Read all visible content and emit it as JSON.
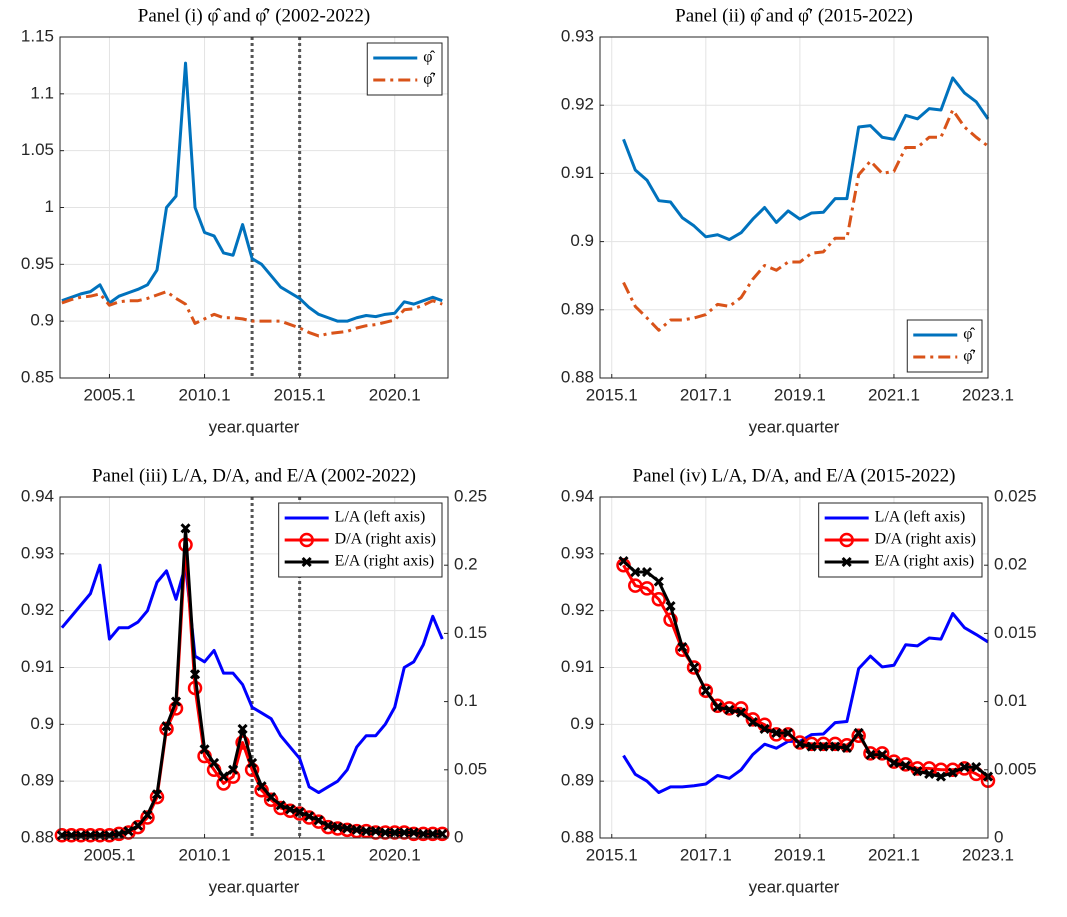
{
  "chart_data": [
    {
      "type": "line",
      "title": "Panel (i) φ̂ and φ̂′ (2002-2022)",
      "xlabel": "year.quarter",
      "x": [
        2002.5,
        2003,
        2003.5,
        2004,
        2004.5,
        2005,
        2005.5,
        2006,
        2006.5,
        2007,
        2007.5,
        2008,
        2008.5,
        2009,
        2009.5,
        2010,
        2010.5,
        2011,
        2011.5,
        2012,
        2012.5,
        2013,
        2013.5,
        2014,
        2014.5,
        2015,
        2015.5,
        2016,
        2016.5,
        2017,
        2017.5,
        2018,
        2018.5,
        2019,
        2019.5,
        2020,
        2020.5,
        2021,
        2021.5,
        2022,
        2022.5
      ],
      "series": [
        {
          "name": "φ̂",
          "color": "#0072BD",
          "style": "solid",
          "values": [
            0.918,
            0.921,
            0.924,
            0.926,
            0.932,
            0.916,
            0.922,
            0.925,
            0.928,
            0.932,
            0.945,
            1.0,
            1.01,
            1.127,
            1.0,
            0.978,
            0.975,
            0.96,
            0.958,
            0.985,
            0.955,
            0.95,
            0.94,
            0.93,
            0.925,
            0.92,
            0.912,
            0.906,
            0.903,
            0.9,
            0.9,
            0.903,
            0.905,
            0.904,
            0.906,
            0.907,
            0.917,
            0.915,
            0.918,
            0.921,
            0.918
          ]
        },
        {
          "name": "φ̂′",
          "color": "#D95319",
          "style": "dashdot",
          "values": [
            0.916,
            0.919,
            0.921,
            0.922,
            0.924,
            0.914,
            0.917,
            0.918,
            0.918,
            0.92,
            0.923,
            0.926,
            0.92,
            0.915,
            0.898,
            0.902,
            0.906,
            0.903,
            0.903,
            0.902,
            0.9,
            0.9,
            0.9,
            0.9,
            0.897,
            0.894,
            0.89,
            0.887,
            0.889,
            0.89,
            0.891,
            0.894,
            0.896,
            0.897,
            0.899,
            0.901,
            0.91,
            0.911,
            0.914,
            0.918,
            0.915
          ]
        }
      ],
      "xlim": [
        2002.4,
        2022.8
      ],
      "xticks": [
        {
          "value": 2005,
          "label": "2005.1"
        },
        {
          "value": 2010,
          "label": "2010.1"
        },
        {
          "value": 2015,
          "label": "2015.1"
        },
        {
          "value": 2020,
          "label": "2020.1"
        }
      ],
      "ylim": [
        0.85,
        1.15
      ],
      "yticks": [
        0.85,
        0.9,
        0.95,
        1,
        1.05,
        1.1,
        1.15
      ],
      "vlines": [
        2012.5,
        2015
      ],
      "vline_color": "#555555",
      "grid": true,
      "legend": "northeast"
    },
    {
      "type": "line",
      "title": "Panel (ii) φ̂ and φ̂′ (2015-2022)",
      "xlabel": "year.quarter",
      "x": [
        2015.25,
        2015.5,
        2015.75,
        2016,
        2016.25,
        2016.5,
        2016.75,
        2017,
        2017.25,
        2017.5,
        2017.75,
        2018,
        2018.25,
        2018.5,
        2018.75,
        2019,
        2019.25,
        2019.5,
        2019.75,
        2020,
        2020.25,
        2020.5,
        2020.75,
        2021,
        2021.25,
        2021.5,
        2021.75,
        2022,
        2022.25,
        2022.5,
        2022.75,
        2023
      ],
      "series": [
        {
          "name": "φ̂",
          "color": "#0072BD",
          "style": "solid",
          "values": [
            0.915,
            0.9105,
            0.909,
            0.906,
            0.9058,
            0.9035,
            0.9023,
            0.9007,
            0.901,
            0.9003,
            0.9013,
            0.9033,
            0.905,
            0.9028,
            0.9045,
            0.9033,
            0.9042,
            0.9043,
            0.9063,
            0.9063,
            0.9168,
            0.917,
            0.9153,
            0.915,
            0.9185,
            0.918,
            0.9195,
            0.9193,
            0.924,
            0.9218,
            0.9205,
            0.918
          ]
        },
        {
          "name": "φ̂′",
          "color": "#D95319",
          "style": "dashdot",
          "values": [
            0.894,
            0.8905,
            0.8888,
            0.887,
            0.8885,
            0.8885,
            0.8888,
            0.8893,
            0.8908,
            0.8905,
            0.8918,
            0.8945,
            0.8965,
            0.8958,
            0.897,
            0.897,
            0.8983,
            0.8985,
            0.9005,
            0.9005,
            0.9098,
            0.9118,
            0.91,
            0.9103,
            0.9138,
            0.9138,
            0.9153,
            0.9153,
            0.9193,
            0.9168,
            0.9153,
            0.914
          ]
        }
      ],
      "xlim": [
        2014.75,
        2023
      ],
      "xticks": [
        {
          "value": 2015,
          "label": "2015.1"
        },
        {
          "value": 2017,
          "label": "2017.1"
        },
        {
          "value": 2019,
          "label": "2019.1"
        },
        {
          "value": 2021,
          "label": "2021.1"
        },
        {
          "value": 2023,
          "label": "2023.1"
        }
      ],
      "ylim": [
        0.88,
        0.93
      ],
      "yticks": [
        0.88,
        0.89,
        0.9,
        0.91,
        0.92,
        0.93
      ],
      "grid": true,
      "legend": "southeast"
    },
    {
      "type": "line",
      "title": "Panel (iii) L/A, D/A, and E/A (2002-2022)",
      "xlabel": "year.quarter",
      "x": [
        2002.5,
        2003,
        2003.5,
        2004,
        2004.5,
        2005,
        2005.5,
        2006,
        2006.5,
        2007,
        2007.5,
        2008,
        2008.5,
        2009,
        2009.5,
        2010,
        2010.5,
        2011,
        2011.5,
        2012,
        2012.5,
        2013,
        2013.5,
        2014,
        2014.5,
        2015,
        2015.5,
        2016,
        2016.5,
        2017,
        2017.5,
        2018,
        2018.5,
        2019,
        2019.5,
        2020,
        2020.5,
        2021,
        2021.5,
        2022,
        2022.5
      ],
      "series": [
        {
          "name": "L/A (left axis)",
          "color": "#0000FF",
          "style": "solid",
          "values": [
            0.917,
            0.919,
            0.921,
            0.923,
            0.928,
            0.915,
            0.917,
            0.917,
            0.918,
            0.92,
            0.925,
            0.927,
            0.922,
            0.928,
            0.912,
            0.911,
            0.913,
            0.909,
            0.909,
            0.907,
            0.903,
            0.902,
            0.901,
            0.898,
            0.896,
            0.894,
            0.889,
            0.888,
            0.889,
            0.89,
            0.892,
            0.896,
            0.898,
            0.898,
            0.9,
            0.903,
            0.91,
            0.911,
            0.914,
            0.919,
            0.915
          ]
        },
        {
          "name": "D/A (right axis)",
          "color": "#FF0000",
          "style": "solid",
          "marker": "o",
          "axis": "y2",
          "values": [
            0.002,
            0.002,
            0.002,
            0.002,
            0.002,
            0.002,
            0.003,
            0.004,
            0.008,
            0.015,
            0.03,
            0.08,
            0.095,
            0.215,
            0.11,
            0.06,
            0.05,
            0.04,
            0.045,
            0.07,
            0.05,
            0.035,
            0.028,
            0.022,
            0.02,
            0.018,
            0.015,
            0.012,
            0.008,
            0.007,
            0.006,
            0.005,
            0.005,
            0.004,
            0.004,
            0.004,
            0.004,
            0.003,
            0.003,
            0.003,
            0.003
          ]
        },
        {
          "name": "E/A (right axis)",
          "color": "#000000",
          "style": "solid",
          "marker": "x",
          "axis": "y2",
          "values": [
            0.002,
            0.002,
            0.002,
            0.002,
            0.002,
            0.002,
            0.003,
            0.005,
            0.009,
            0.017,
            0.032,
            0.082,
            0.1,
            0.227,
            0.12,
            0.065,
            0.055,
            0.045,
            0.05,
            0.08,
            0.055,
            0.038,
            0.03,
            0.024,
            0.021,
            0.019,
            0.016,
            0.013,
            0.009,
            0.008,
            0.007,
            0.006,
            0.005,
            0.005,
            0.004,
            0.004,
            0.004,
            0.004,
            0.003,
            0.003,
            0.003
          ]
        }
      ],
      "xlim": [
        2002.4,
        2022.8
      ],
      "xticks": [
        {
          "value": 2005,
          "label": "2005.1"
        },
        {
          "value": 2010,
          "label": "2010.1"
        },
        {
          "value": 2015,
          "label": "2015.1"
        },
        {
          "value": 2020,
          "label": "2020.1"
        }
      ],
      "ylim": [
        0.88,
        0.94
      ],
      "yticks": [
        0.88,
        0.89,
        0.9,
        0.91,
        0.92,
        0.93,
        0.94
      ],
      "y2lim": [
        0,
        0.25
      ],
      "y2ticks": [
        0,
        0.05,
        0.1,
        0.15,
        0.2,
        0.25
      ],
      "vlines": [
        2012.5,
        2015
      ],
      "vline_color": "#555555",
      "grid": true,
      "legend": "northeast"
    },
    {
      "type": "line",
      "title": "Panel (iv) L/A, D/A, and E/A (2015-2022)",
      "xlabel": "year.quarter",
      "x": [
        2015.25,
        2015.5,
        2015.75,
        2016,
        2016.25,
        2016.5,
        2016.75,
        2017,
        2017.25,
        2017.5,
        2017.75,
        2018,
        2018.25,
        2018.5,
        2018.75,
        2019,
        2019.25,
        2019.5,
        2019.75,
        2020,
        2020.25,
        2020.5,
        2020.75,
        2021,
        2021.25,
        2021.5,
        2021.75,
        2022,
        2022.25,
        2022.5,
        2022.75,
        2023
      ],
      "series": [
        {
          "name": "L/A (left axis)",
          "color": "#0000FF",
          "style": "solid",
          "values": [
            0.8945,
            0.8912,
            0.89,
            0.888,
            0.889,
            0.889,
            0.8892,
            0.8895,
            0.891,
            0.8905,
            0.892,
            0.8947,
            0.8965,
            0.8958,
            0.897,
            0.897,
            0.8982,
            0.8983,
            0.9003,
            0.9005,
            0.9098,
            0.912,
            0.9101,
            0.9104,
            0.914,
            0.9138,
            0.9152,
            0.915,
            0.9195,
            0.917,
            0.9158,
            0.9145
          ]
        },
        {
          "name": "D/A (right axis)",
          "color": "#FF0000",
          "style": "solid",
          "marker": "o",
          "axis": "y2",
          "values": [
            0.02,
            0.0185,
            0.0183,
            0.0175,
            0.016,
            0.0138,
            0.0125,
            0.0108,
            0.0097,
            0.0095,
            0.0095,
            0.0087,
            0.0083,
            0.0076,
            0.0076,
            0.007,
            0.0069,
            0.0069,
            0.0069,
            0.0068,
            0.0075,
            0.0062,
            0.0062,
            0.0056,
            0.0054,
            0.0051,
            0.0051,
            0.005,
            0.005,
            0.0051,
            0.0047,
            0.0042
          ]
        },
        {
          "name": "E/A (right axis)",
          "color": "#000000",
          "style": "solid",
          "marker": "x",
          "axis": "y2",
          "values": [
            0.0203,
            0.0195,
            0.0195,
            0.0188,
            0.017,
            0.014,
            0.0125,
            0.0108,
            0.0096,
            0.0094,
            0.0092,
            0.0085,
            0.008,
            0.0077,
            0.0077,
            0.0069,
            0.0067,
            0.0067,
            0.0067,
            0.0066,
            0.0077,
            0.0061,
            0.0061,
            0.0055,
            0.0053,
            0.0049,
            0.0047,
            0.0045,
            0.0048,
            0.0052,
            0.0052,
            0.0045
          ]
        }
      ],
      "xlim": [
        2014.75,
        2023
      ],
      "xticks": [
        {
          "value": 2015,
          "label": "2015.1"
        },
        {
          "value": 2017,
          "label": "2017.1"
        },
        {
          "value": 2019,
          "label": "2019.1"
        },
        {
          "value": 2021,
          "label": "2021.1"
        },
        {
          "value": 2023,
          "label": "2023.1"
        }
      ],
      "ylim": [
        0.88,
        0.94
      ],
      "yticks": [
        0.88,
        0.89,
        0.9,
        0.91,
        0.92,
        0.93,
        0.94
      ],
      "y2lim": [
        0,
        0.025
      ],
      "y2ticks": [
        0,
        0.005,
        0.01,
        0.015,
        0.02,
        0.025
      ],
      "grid": true,
      "legend": "northeast"
    }
  ]
}
